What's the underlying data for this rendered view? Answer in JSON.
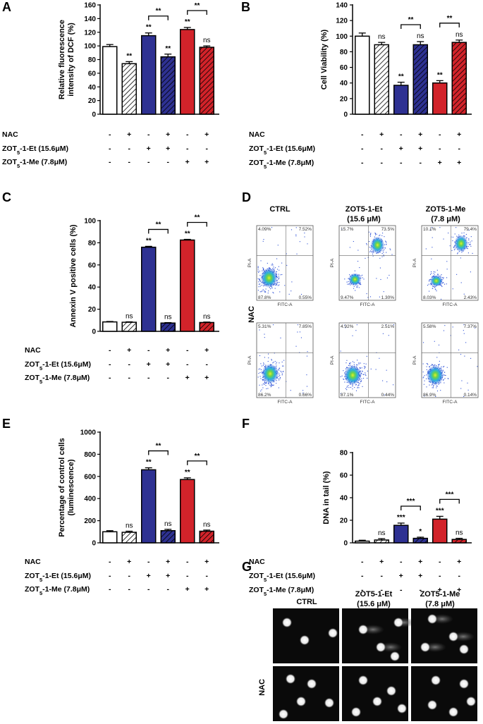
{
  "panels": {
    "A": "A",
    "B": "B",
    "C": "C",
    "D": "D",
    "E": "E",
    "F": "F",
    "G": "G"
  },
  "treatment_rows": {
    "nac": "NAC",
    "et": "ZOT5-1-Et (15.6μM)",
    "me": "ZOT5-1-Me (7.8μM)",
    "nac_signs": [
      "-",
      "+",
      "-",
      "+",
      "-",
      "+"
    ],
    "et_signs": [
      "-",
      "-",
      "+",
      "+",
      "-",
      "-"
    ],
    "me_signs": [
      "-",
      "-",
      "-",
      "-",
      "+",
      "+"
    ]
  },
  "colors": {
    "control": "#ffffff",
    "et": "#2e3192",
    "me": "#d2232a"
  },
  "chart_data": [
    {
      "id": "A",
      "type": "bar",
      "ylabel": "Relative fluorescence intensity of DCF (%)",
      "ylim": [
        0,
        160
      ],
      "yticks": [
        0,
        20,
        40,
        60,
        80,
        100,
        120,
        140,
        160
      ],
      "values": [
        99,
        74,
        115,
        84,
        124,
        98
      ],
      "errors": [
        3,
        3,
        4,
        4,
        3,
        2
      ],
      "labels": [
        "",
        "**",
        "**",
        "**",
        "**",
        "ns"
      ],
      "brackets": [
        {
          "from": 2,
          "to": 3,
          "label": "**"
        },
        {
          "from": 4,
          "to": 5,
          "label": "**"
        }
      ]
    },
    {
      "id": "B",
      "type": "bar",
      "ylabel": "Cell Viability (%)",
      "ylim": [
        0,
        140
      ],
      "yticks": [
        0,
        20,
        40,
        60,
        80,
        100,
        120,
        140
      ],
      "values": [
        100,
        89,
        37,
        89,
        40,
        92
      ],
      "errors": [
        4,
        3,
        4,
        4,
        3,
        3
      ],
      "labels": [
        "",
        "ns",
        "**",
        "ns",
        "**",
        "ns"
      ],
      "brackets": [
        {
          "from": 2,
          "to": 3,
          "label": "**"
        },
        {
          "from": 4,
          "to": 5,
          "label": "**"
        }
      ]
    },
    {
      "id": "C",
      "type": "bar",
      "ylabel": "Annexin V positive cells (%)",
      "ylim": [
        0,
        100
      ],
      "yticks": [
        0,
        20,
        40,
        60,
        80,
        100
      ],
      "values": [
        8.5,
        8.2,
        76,
        7.5,
        82.5,
        8
      ],
      "errors": [
        0.4,
        0.4,
        0.8,
        0.4,
        0.6,
        0.4
      ],
      "labels": [
        "",
        "ns",
        "**",
        "ns",
        "**",
        "ns"
      ],
      "brackets": [
        {
          "from": 2,
          "to": 3,
          "label": "**"
        },
        {
          "from": 4,
          "to": 5,
          "label": "**"
        }
      ]
    },
    {
      "id": "E",
      "type": "bar",
      "ylabel": "Percentage of control cells (luminescence)",
      "ylim": [
        0,
        1000
      ],
      "yticks": [
        0,
        200,
        400,
        600,
        800,
        1000
      ],
      "values": [
        100,
        95,
        660,
        110,
        572,
        105
      ],
      "errors": [
        10,
        10,
        18,
        12,
        15,
        10
      ],
      "labels": [
        "",
        "ns",
        "**",
        "ns",
        "**",
        "ns"
      ],
      "brackets": [
        {
          "from": 2,
          "to": 3,
          "label": "**"
        },
        {
          "from": 4,
          "to": 5,
          "label": "**"
        }
      ]
    },
    {
      "id": "F",
      "type": "bar",
      "ylabel": "DNA in tail (%)",
      "ylim": [
        0,
        80
      ],
      "yticks": [
        0,
        20,
        40,
        60,
        80
      ],
      "values": [
        1.5,
        2.5,
        15.5,
        4,
        21,
        3
      ],
      "errors": [
        0.8,
        1.2,
        2,
        1,
        2.5,
        1
      ],
      "labels": [
        "",
        "ns",
        "***",
        "*",
        "***",
        "ns"
      ],
      "brackets": [
        {
          "from": 2,
          "to": 3,
          "label": "***"
        },
        {
          "from": 4,
          "to": 5,
          "label": "***"
        }
      ]
    }
  ],
  "flow": {
    "col_titles": [
      "CTRL",
      "ZOT5-1-Et",
      "ZOT5-1-Me"
    ],
    "col_subtitles": [
      "",
      "(15.6 μM)",
      "(7.8 μM)"
    ],
    "row_label": "NAC",
    "x_axis": "FITC-A",
    "y_axis": "PI-A",
    "quadrants": [
      [
        "4.09%",
        "7.52%",
        "87.8%",
        "0.55%"
      ],
      [
        "15.7%",
        "73.5%",
        "9.47%",
        "1.30%"
      ],
      [
        "10.1%",
        "79.4%",
        "8.03%",
        "2.43%"
      ],
      [
        "5.31%",
        "7.85%",
        "86.2%",
        "0.66%"
      ],
      [
        "4.92%",
        "2.51%",
        "87.1%",
        "0.44%"
      ],
      [
        "5.58%",
        "7.37%",
        "86.9%",
        "0.14%"
      ]
    ]
  },
  "comet": {
    "col_titles": [
      "CTRL",
      "ZOT5-1-Et",
      "ZOT5-1-Me"
    ],
    "col_subtitles": [
      "",
      "(15.6 μM)",
      "(7.8 μM)"
    ],
    "row_label": "NAC"
  }
}
